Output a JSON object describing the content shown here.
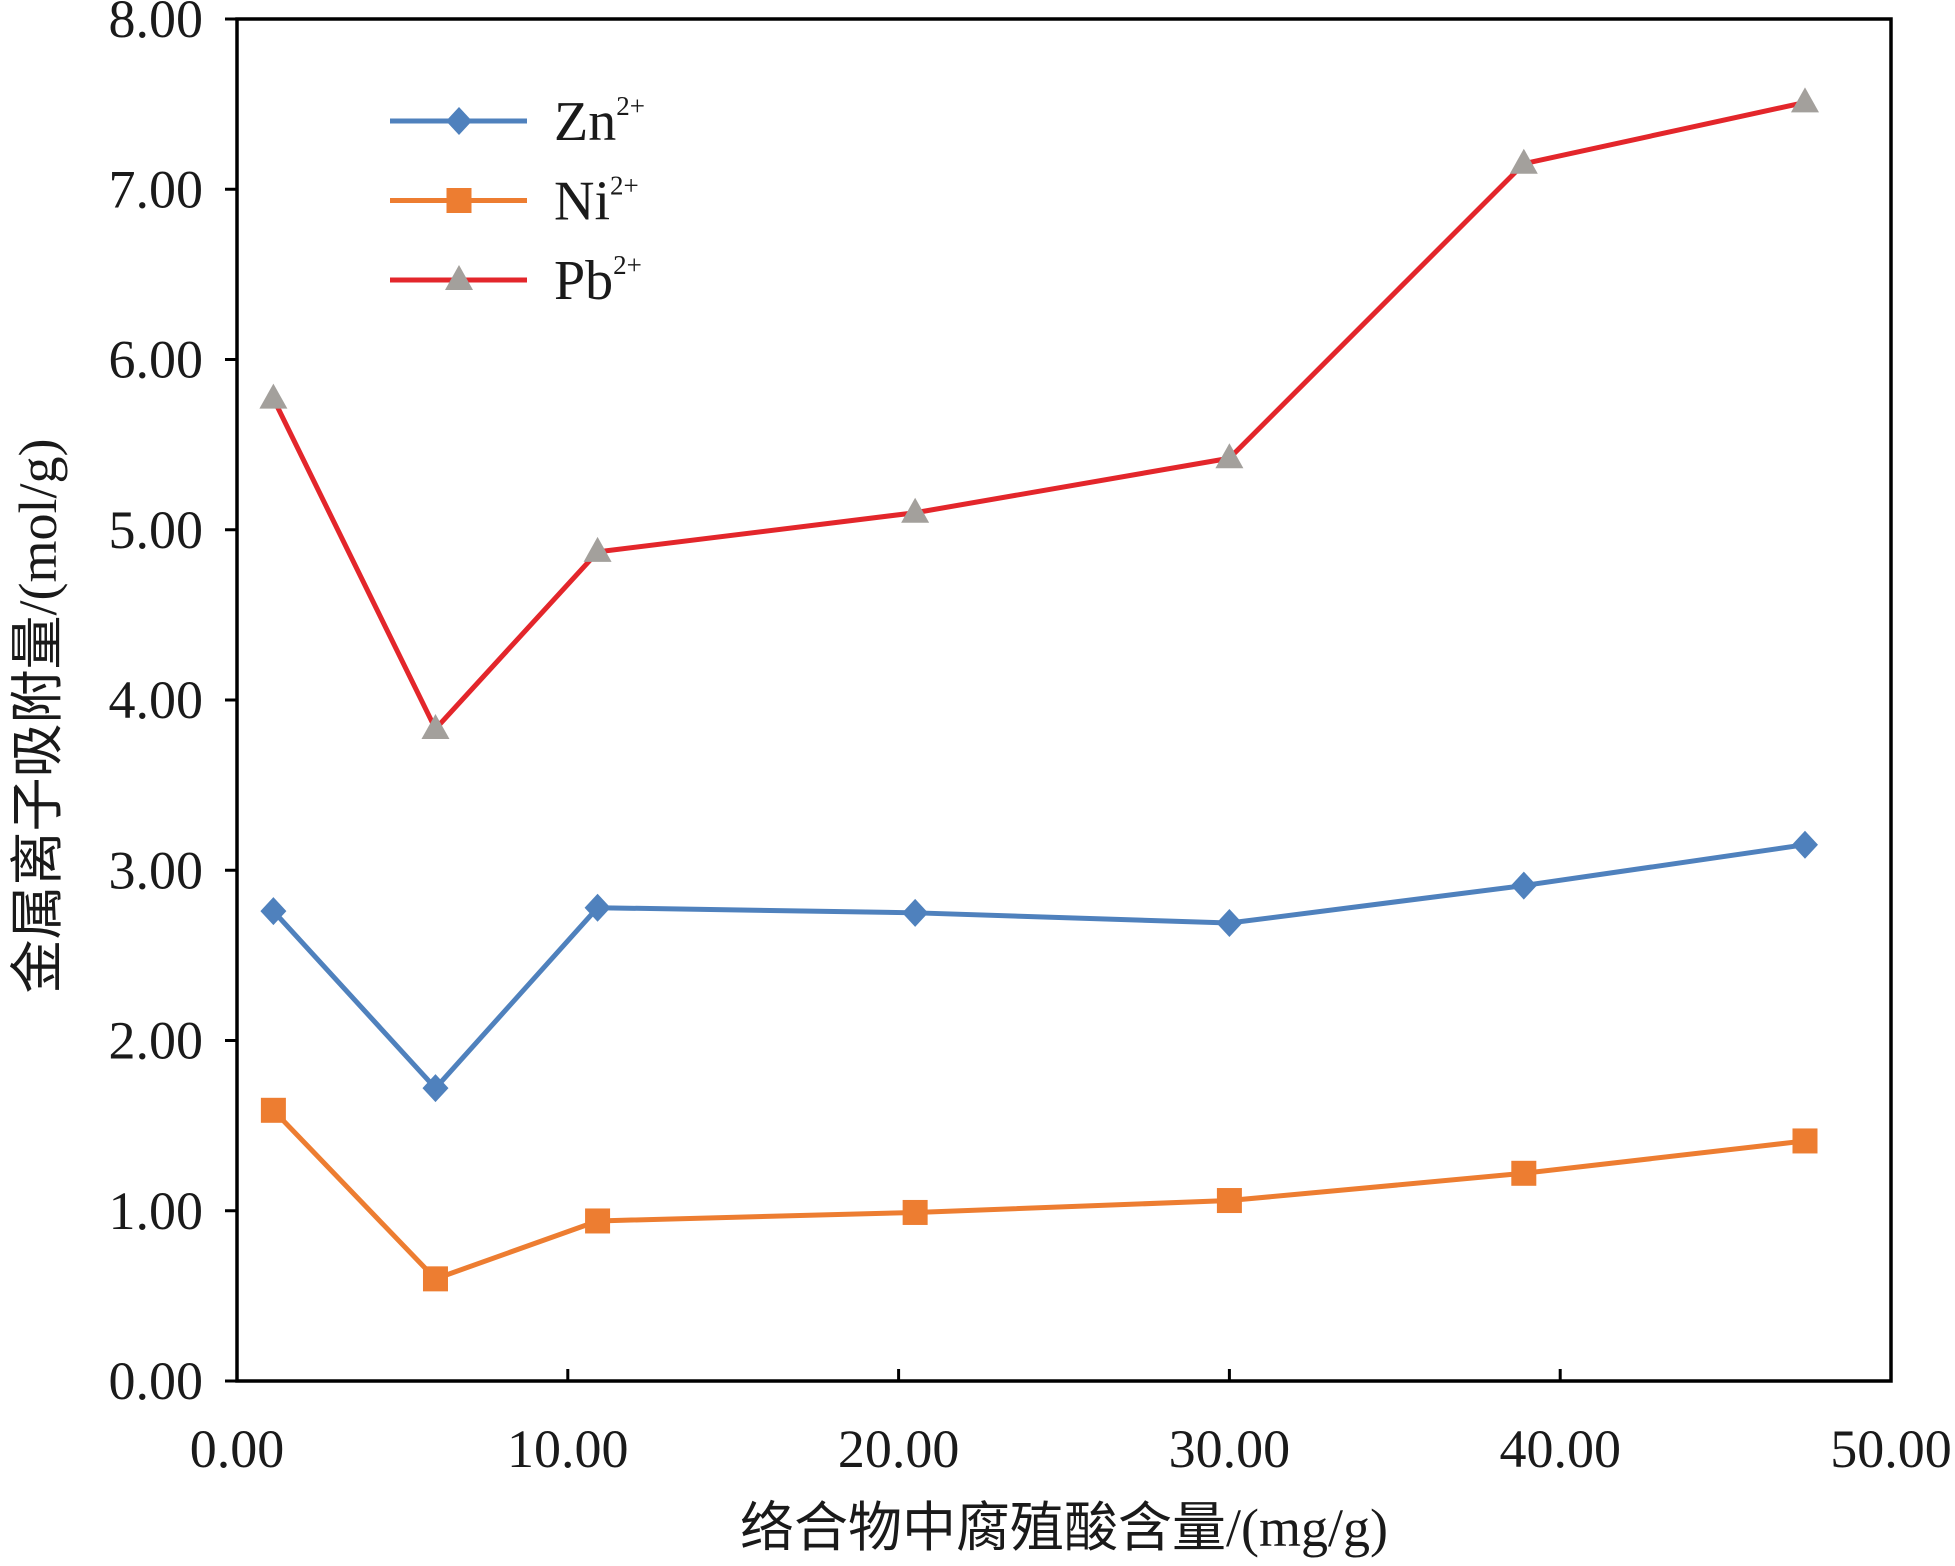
{
  "chart_data": {
    "type": "line",
    "x": [
      1.1,
      6.0,
      10.9,
      20.5,
      30.0,
      38.9,
      47.4
    ],
    "series": [
      {
        "name": "Zn",
        "name_sup": "2+",
        "values": [
          2.76,
          1.72,
          2.78,
          2.75,
          2.69,
          2.91,
          3.15
        ],
        "color": "#4F81BD",
        "marker": "diamond",
        "marker_color": "#4F81BD"
      },
      {
        "name": "Ni",
        "name_sup": "2+",
        "values": [
          1.59,
          0.6,
          0.94,
          0.99,
          1.06,
          1.22,
          1.41
        ],
        "color": "#ED7D31",
        "marker": "square",
        "marker_color": "#ED7D31"
      },
      {
        "name": "Pb",
        "name_sup": "2+",
        "values": [
          5.77,
          3.83,
          4.87,
          5.1,
          5.42,
          7.15,
          7.51
        ],
        "color": "#E3262B",
        "marker": "triangle",
        "marker_color": "#A3A09C"
      }
    ],
    "xlabel": "络合物中腐殖酸含量/(mg/g)",
    "ylabel": "金属离子吸附量/(mol/g)",
    "xlim": [
      0,
      50
    ],
    "ylim": [
      0,
      8
    ],
    "x_ticks": [
      "0.00",
      "10.00",
      "20.00",
      "30.00",
      "40.00",
      "50.00"
    ],
    "y_ticks": [
      "0.00",
      "1.00",
      "2.00",
      "3.00",
      "4.00",
      "5.00",
      "6.00",
      "7.00",
      "8.00"
    ],
    "grid": false,
    "legend_position": "top-left"
  }
}
